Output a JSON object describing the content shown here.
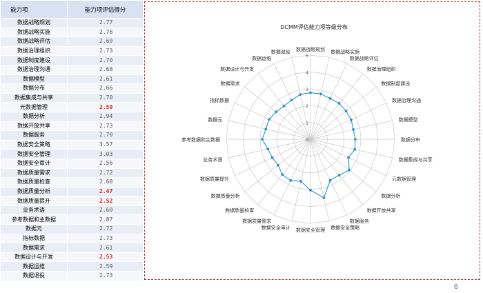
{
  "table": {
    "header": {
      "name": "能力项",
      "score": "能力项评估得分"
    },
    "low_score_color": "#e02020"
  },
  "chart_data": {
    "type": "radar",
    "title": "DCMM评估能力项等级分布",
    "categories": [
      "数据战略规划",
      "数据战略实施",
      "数据战略评估",
      "数据治理组织",
      "数据制度建设",
      "数据治理沟通",
      "数据模型",
      "数据分布",
      "数据集成与共享",
      "元数据管理",
      "数据分析",
      "数据开放共享",
      "数据服务",
      "数据安全策略",
      "数据安全管理",
      "数据安全审计",
      "数据质量需求",
      "数据质量检查",
      "数据质量分析",
      "数据质量提升",
      "业务术语",
      "参考数据和主数据",
      "数据元",
      "指标数据",
      "数据需求",
      "数据设计与开发",
      "数据运维",
      "数据退役"
    ],
    "values": [
      2.77,
      2.76,
      2.69,
      2.73,
      2.7,
      2.68,
      2.61,
      2.66,
      2.7,
      2.5,
      2.94,
      2.73,
      2.7,
      3.57,
      3.03,
      2.56,
      2.72,
      2.68,
      2.47,
      2.52,
      2.6,
      2.87,
      2.72,
      2.73,
      2.61,
      2.53,
      2.59,
      2.73
    ],
    "highlight": [
      false,
      false,
      false,
      false,
      false,
      false,
      false,
      false,
      false,
      true,
      false,
      false,
      false,
      false,
      false,
      false,
      false,
      false,
      true,
      true,
      false,
      false,
      false,
      false,
      false,
      true,
      false,
      false
    ],
    "axis_ticks": [
      "0",
      "1",
      "2",
      "3",
      "4",
      "5"
    ],
    "rmax": 5,
    "series_color": "#2e8fd0",
    "grid_color": "#c8c8c8"
  },
  "footer": {
    "page_number": "6"
  }
}
